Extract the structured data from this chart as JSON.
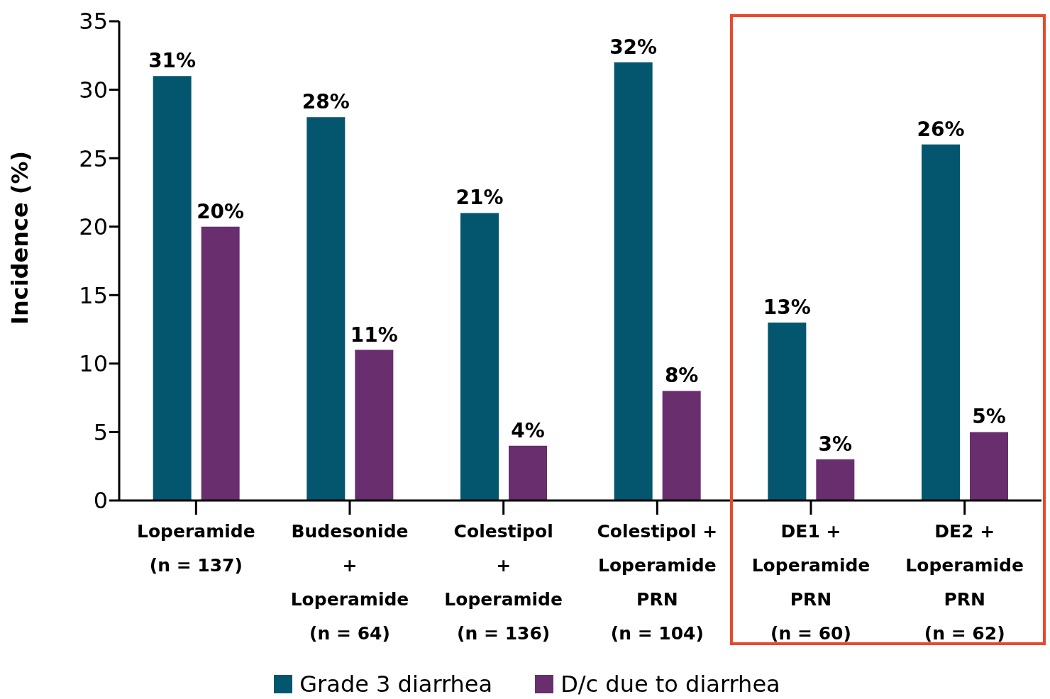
{
  "chart_data": {
    "type": "bar",
    "ylabel": "Incidence (%)",
    "categories": [
      "Loperamide\n(n = 137)",
      "Budesonide\n+\nLoperamide\n(n = 64)",
      "Colestipol\n+\nLoperamide\n(n = 136)",
      "Colestipol +\nLoperamide\nPRN\n(n = 104)",
      "DE1 +\nLoperamide\nPRN\n(n = 60)",
      "DE2 +\nLoperamide\nPRN\n(n = 62)"
    ],
    "series": [
      {
        "name": "Grade 3 diarrhea",
        "color": "#04566e",
        "values": [
          31,
          28,
          21,
          32,
          13,
          26
        ],
        "value_labels": [
          "31%",
          "28%",
          "21%",
          "32%",
          "13%",
          "26%"
        ]
      },
      {
        "name": "D/c due to diarrhea",
        "color": "#682e6e",
        "values": [
          20,
          11,
          4,
          8,
          3,
          5
        ],
        "value_labels": [
          "20%",
          "11%",
          "4%",
          "8%",
          "3%",
          "5%"
        ]
      }
    ],
    "ylim": [
      0,
      35
    ],
    "yticks": [
      0,
      5,
      10,
      15,
      20,
      25,
      30,
      35
    ],
    "legend": "bottom"
  }
}
